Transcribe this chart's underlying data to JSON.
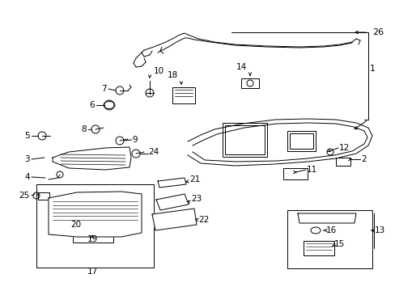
{
  "bg_color": "#ffffff",
  "fg_color": "#000000",
  "fig_width": 4.89,
  "fig_height": 3.6,
  "dpi": 100
}
